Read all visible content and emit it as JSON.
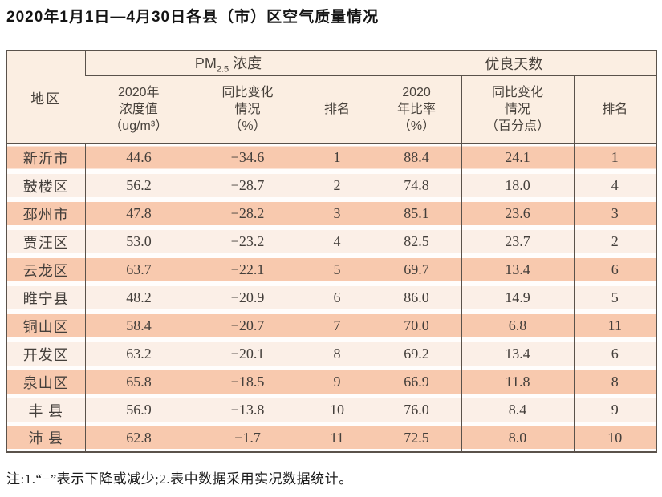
{
  "title": "2020年1月1日—4月30日各县（市）区空气质量情况",
  "table": {
    "region_header": "地区",
    "sections": {
      "pm25": {
        "prefix": "PM",
        "sub": "2.5",
        "suffix": " 浓度"
      },
      "good_days": "优良天数"
    },
    "sub_headers": {
      "pm_value": "2020年\n浓度值\n（ug/m³）",
      "pm_change": "同比变化\n情况\n（%）",
      "pm_rank": "排名",
      "good_ratio": "2020\n年比率\n（%）",
      "good_change": "同比变化\n情况\n（百分点）",
      "good_rank": "排名"
    },
    "rows": [
      {
        "region": "新沂市",
        "pm_value": "44.6",
        "pm_change": "−34.6",
        "pm_rank": "1",
        "good_ratio": "88.4",
        "good_change": "24.1",
        "good_rank": "1"
      },
      {
        "region": "鼓楼区",
        "pm_value": "56.2",
        "pm_change": "−28.7",
        "pm_rank": "2",
        "good_ratio": "74.8",
        "good_change": "18.0",
        "good_rank": "4"
      },
      {
        "region": "邳州市",
        "pm_value": "47.8",
        "pm_change": "−28.2",
        "pm_rank": "3",
        "good_ratio": "85.1",
        "good_change": "23.6",
        "good_rank": "3"
      },
      {
        "region": "贾汪区",
        "pm_value": "53.0",
        "pm_change": "−23.2",
        "pm_rank": "4",
        "good_ratio": "82.5",
        "good_change": "23.7",
        "good_rank": "2"
      },
      {
        "region": "云龙区",
        "pm_value": "63.7",
        "pm_change": "−22.1",
        "pm_rank": "5",
        "good_ratio": "69.7",
        "good_change": "13.4",
        "good_rank": "6"
      },
      {
        "region": "睢宁县",
        "pm_value": "48.2",
        "pm_change": "−20.9",
        "pm_rank": "6",
        "good_ratio": "86.0",
        "good_change": "14.9",
        "good_rank": "5"
      },
      {
        "region": "铜山区",
        "pm_value": "58.4",
        "pm_change": "−20.7",
        "pm_rank": "7",
        "good_ratio": "70.0",
        "good_change": "6.8",
        "good_rank": "11"
      },
      {
        "region": "开发区",
        "pm_value": "63.2",
        "pm_change": "−20.1",
        "pm_rank": "8",
        "good_ratio": "69.2",
        "good_change": "13.4",
        "good_rank": "6"
      },
      {
        "region": "泉山区",
        "pm_value": "65.8",
        "pm_change": "−18.5",
        "pm_rank": "9",
        "good_ratio": "66.9",
        "good_change": "11.8",
        "good_rank": "8"
      },
      {
        "region": "丰 县",
        "pm_value": "56.9",
        "pm_change": "−13.8",
        "pm_rank": "10",
        "good_ratio": "76.0",
        "good_change": "8.4",
        "good_rank": "9"
      },
      {
        "region": "沛 县",
        "pm_value": "62.8",
        "pm_change": "−1.7",
        "pm_rank": "11",
        "good_ratio": "72.5",
        "good_change": "8.0",
        "good_rank": "10"
      }
    ]
  },
  "footnote": "注:1.“−”表示下降或减少;2.表中数据采用实况数据统计。",
  "colors": {
    "band_strong": "#f8c9ae",
    "band_light": "#fbefe7",
    "header_bg": "#fbeee2",
    "border": "#5a524b"
  }
}
